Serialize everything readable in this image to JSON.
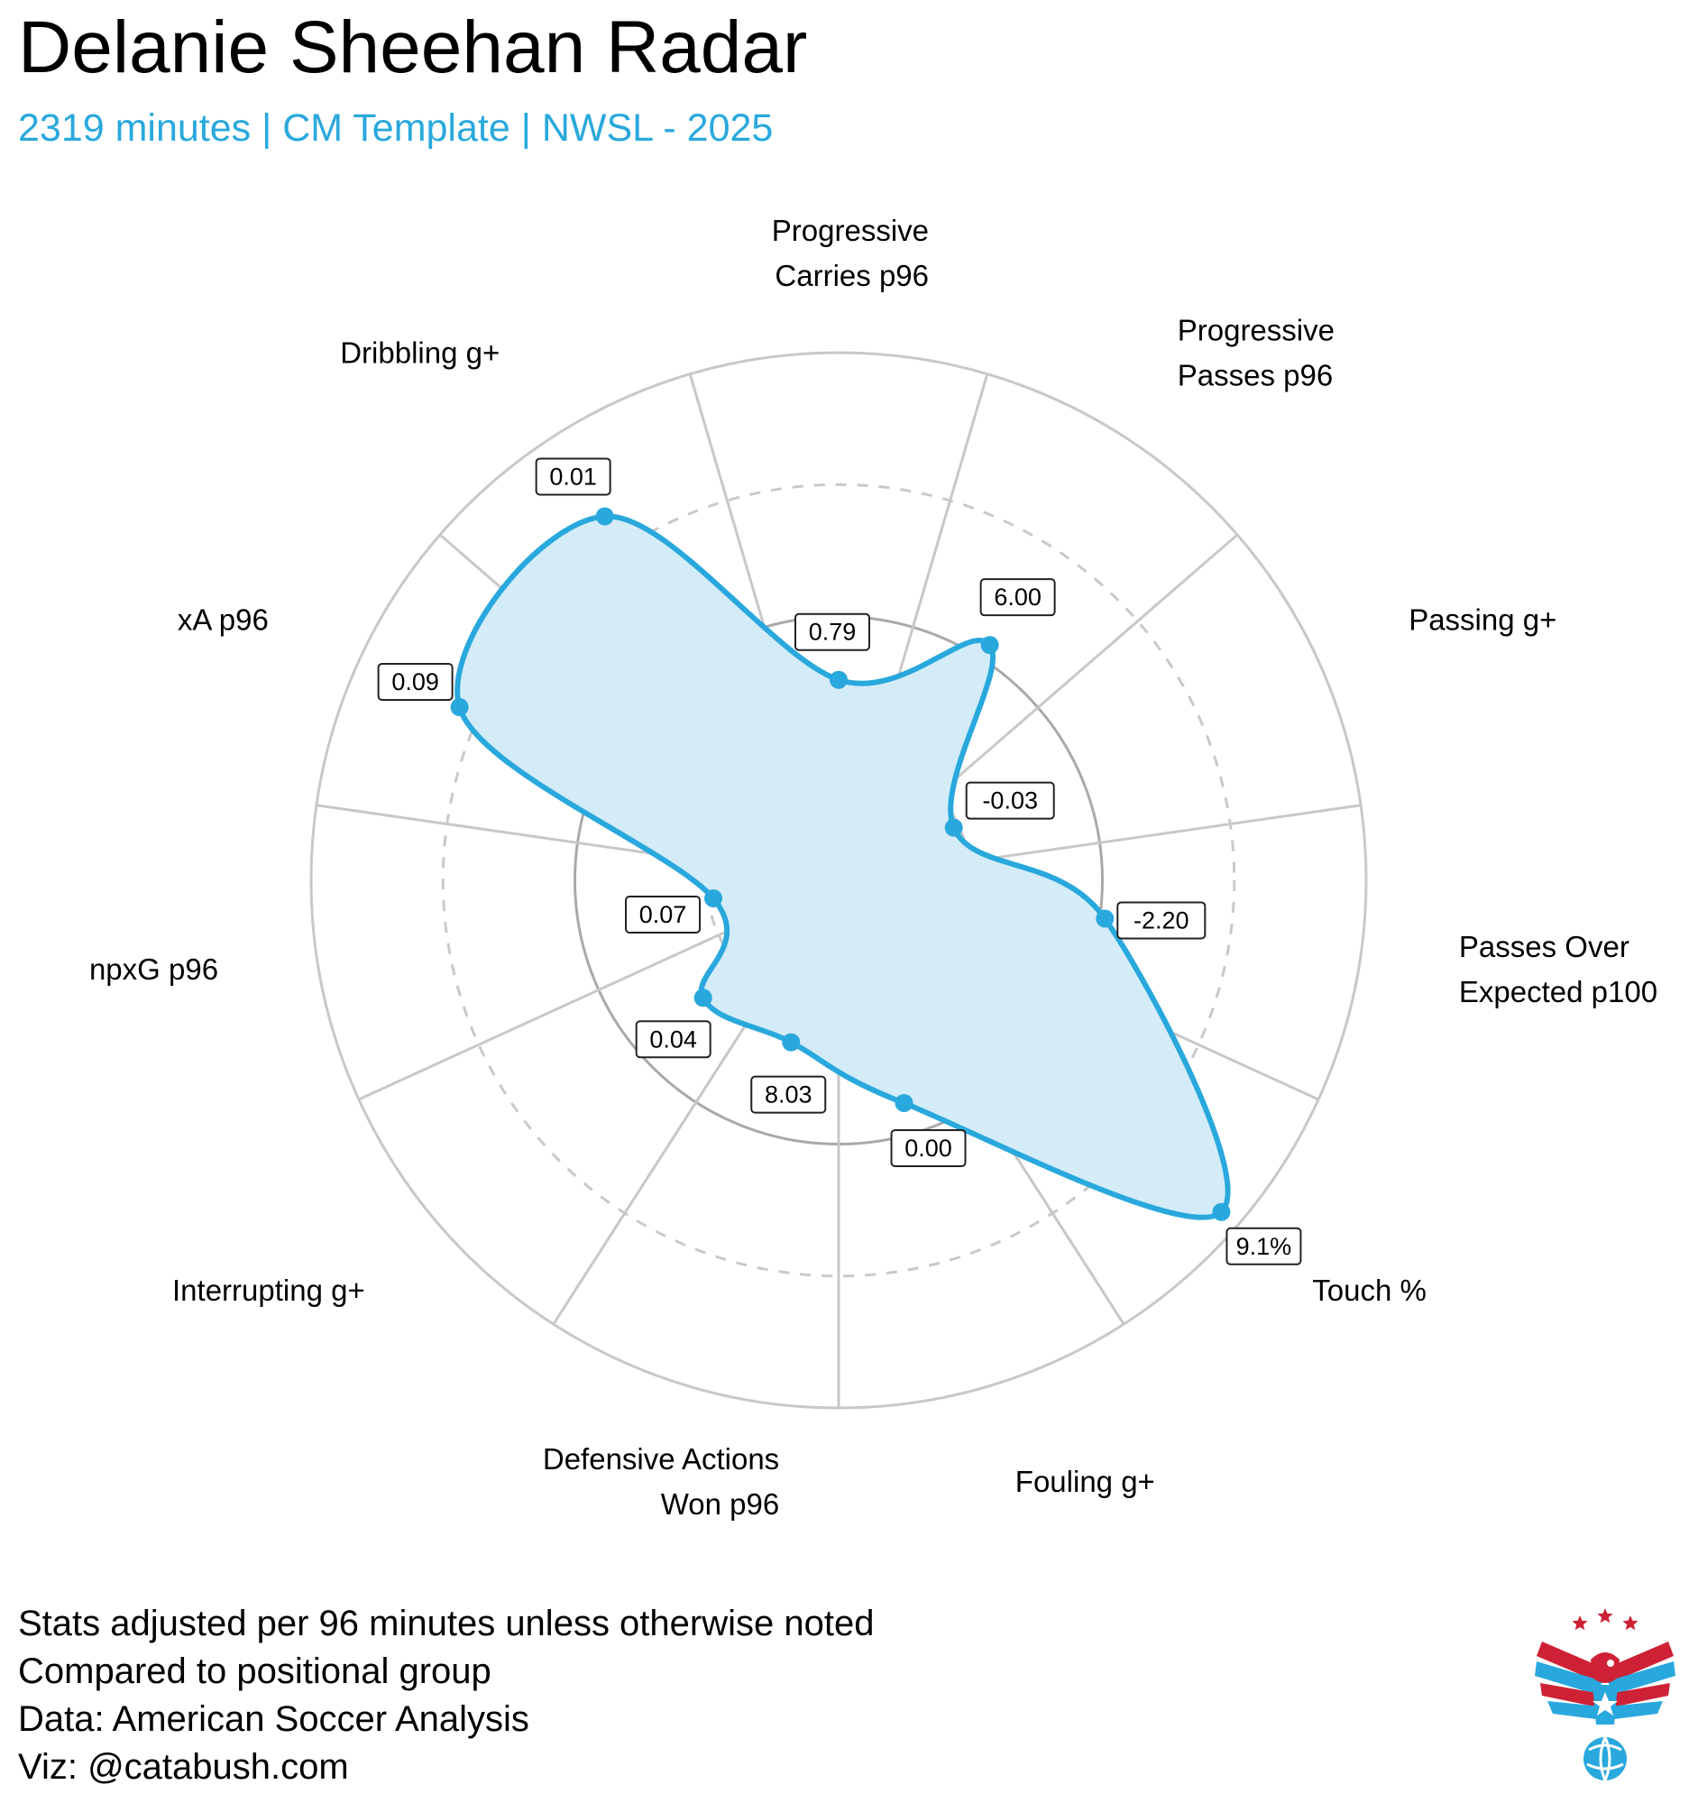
{
  "header": {
    "title": "Delanie Sheehan Radar",
    "subtitle": "2319 minutes | CM Template | NWSL - 2025"
  },
  "colors": {
    "accent": "#29a8dd",
    "fill": "#d4ecf8",
    "grid": "#c8c8c8",
    "ring_solid": "#a9a9a9",
    "ring_dashed": "#c9c9c9",
    "logo_red": "#cf2136",
    "logo_blue": "#29a8dd"
  },
  "chart_data": {
    "type": "radar",
    "title": "Delanie Sheehan Radar",
    "scale": "percentile",
    "rlim": [
      0,
      100
    ],
    "rings": [
      25,
      50,
      75,
      100
    ],
    "series": [
      {
        "name": "Delanie Sheehan",
        "axes": [
          {
            "label": [
              "Progressive",
              "Carries p96"
            ],
            "value_label": "0.79",
            "percentile": 38
          },
          {
            "label": [
              "Progressive",
              "Passes p96"
            ],
            "value_label": "6.00",
            "percentile": 53
          },
          {
            "label": [
              "Passing g+"
            ],
            "value_label": "-0.03",
            "percentile": 24
          },
          {
            "label": [
              "Passes Over",
              "Expected p100"
            ],
            "value_label": "-2.20",
            "percentile": 51
          },
          {
            "label": [
              "Touch %"
            ],
            "value_label": "9.1%",
            "percentile": 96
          },
          {
            "label": [
              "Fouling g+"
            ],
            "value_label": "0.00",
            "percentile": 44
          },
          {
            "label": [
              "Defensive Actions",
              "Won p96"
            ],
            "value_label": "8.03",
            "percentile": 32
          },
          {
            "label": [
              "Interrupting g+"
            ],
            "value_label": "0.04",
            "percentile": 34
          },
          {
            "label": [
              "npxG p96"
            ],
            "value_label": "0.07",
            "percentile": 24
          },
          {
            "label": [
              "xA p96"
            ],
            "value_label": "0.09",
            "percentile": 79
          },
          {
            "label": [
              "Dribbling g+"
            ],
            "value_label": "0.01",
            "percentile": 82
          }
        ]
      }
    ]
  },
  "footer": {
    "lines": [
      "Stats adjusted per 96 minutes unless otherwise noted",
      "Compared to positional group",
      "Data: American Soccer Analysis",
      "Viz: @catabush.com"
    ]
  },
  "logo": {
    "icon": "eagle-soccer-ball-logo"
  }
}
